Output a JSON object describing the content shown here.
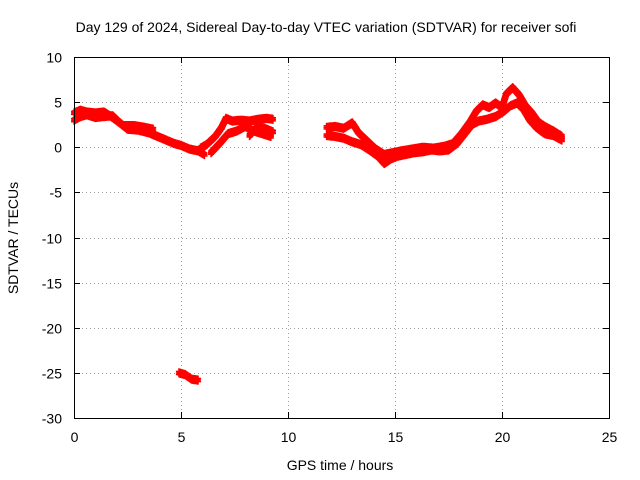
{
  "chart_data": {
    "type": "scatter",
    "title": "Day 129 of 2024, Sidereal Day-to-day VTEC variation (SDTVAR) for receiver sofi",
    "xlabel": "GPS time / hours",
    "ylabel": "SDTVAR / TECUs",
    "xlim": [
      0,
      25
    ],
    "ylim": [
      -30,
      10
    ],
    "x_ticks": [
      0,
      5,
      10,
      15,
      20,
      25
    ],
    "y_ticks": [
      10,
      5,
      0,
      -5,
      -10,
      -15,
      -20,
      -25,
      -30
    ],
    "grid": true,
    "marker_color": "#ff0000",
    "series": [
      {
        "name": "SDTVAR",
        "segments": [
          [
            [
              0.0,
              3.0
            ],
            [
              0.3,
              3.4
            ],
            [
              0.6,
              3.6
            ],
            [
              1.0,
              3.3
            ],
            [
              1.4,
              3.4
            ],
            [
              1.8,
              3.5
            ],
            [
              2.1,
              2.8
            ],
            [
              2.5,
              2.0
            ],
            [
              3.0,
              1.9
            ],
            [
              3.5,
              1.6
            ],
            [
              3.9,
              1.2
            ],
            [
              4.3,
              0.8
            ],
            [
              4.7,
              0.4
            ],
            [
              5.0,
              0.2
            ],
            [
              5.4,
              -0.2
            ],
            [
              5.8,
              -0.4
            ],
            [
              6.1,
              -0.8
            ]
          ],
          [
            [
              0.0,
              3.8
            ],
            [
              0.3,
              4.1
            ],
            [
              0.6,
              3.9
            ],
            [
              1.0,
              3.8
            ],
            [
              1.4,
              3.9
            ],
            [
              1.8,
              3.3
            ],
            [
              2.3,
              2.4
            ],
            [
              2.8,
              2.4
            ],
            [
              3.3,
              2.2
            ],
            [
              3.7,
              2.0
            ]
          ],
          [
            [
              5.9,
              -0.1
            ],
            [
              6.2,
              0.3
            ],
            [
              6.6,
              1.2
            ],
            [
              6.9,
              2.2
            ],
            [
              7.1,
              3.2
            ],
            [
              7.4,
              2.9
            ],
            [
              7.8,
              3.0
            ],
            [
              8.2,
              2.9
            ],
            [
              8.6,
              3.1
            ],
            [
              9.0,
              3.2
            ],
            [
              9.3,
              3.1
            ]
          ],
          [
            [
              6.4,
              -0.6
            ],
            [
              6.8,
              0.4
            ],
            [
              7.2,
              1.5
            ],
            [
              7.6,
              1.8
            ],
            [
              8.0,
              2.3
            ],
            [
              8.4,
              1.8
            ],
            [
              8.8,
              1.5
            ],
            [
              9.2,
              1.2
            ]
          ],
          [
            [
              8.2,
              1.3
            ],
            [
              8.6,
              2.4
            ],
            [
              9.0,
              2.0
            ],
            [
              9.3,
              1.7
            ]
          ],
          [
            [
              11.8,
              2.2
            ],
            [
              12.2,
              2.3
            ],
            [
              12.6,
              2.1
            ],
            [
              13.0,
              2.7
            ],
            [
              13.3,
              1.6
            ],
            [
              13.7,
              0.7
            ],
            [
              14.1,
              -0.2
            ],
            [
              14.5,
              -0.8
            ],
            [
              14.9,
              -0.6
            ],
            [
              15.3,
              -0.4
            ],
            [
              15.8,
              -0.2
            ],
            [
              16.3,
              0.0
            ],
            [
              16.8,
              -0.1
            ],
            [
              17.3,
              0.1
            ],
            [
              17.7,
              0.4
            ],
            [
              18.1,
              1.5
            ],
            [
              18.5,
              2.8
            ],
            [
              18.8,
              4.0
            ],
            [
              19.1,
              4.7
            ],
            [
              19.4,
              4.4
            ],
            [
              19.7,
              4.9
            ],
            [
              20.0,
              4.4
            ],
            [
              20.2,
              5.9
            ],
            [
              20.5,
              6.6
            ],
            [
              20.8,
              5.8
            ],
            [
              21.1,
              4.6
            ],
            [
              21.4,
              3.8
            ],
            [
              21.7,
              2.8
            ],
            [
              22.0,
              2.3
            ],
            [
              22.4,
              1.8
            ],
            [
              22.8,
              1.2
            ]
          ],
          [
            [
              11.8,
              1.3
            ],
            [
              12.2,
              1.2
            ],
            [
              12.6,
              1.0
            ],
            [
              13.0,
              0.6
            ],
            [
              13.4,
              0.3
            ],
            [
              13.8,
              -0.3
            ],
            [
              14.2,
              -1.0
            ],
            [
              14.5,
              -1.8
            ],
            [
              14.8,
              -1.3
            ],
            [
              15.1,
              -1.0
            ],
            [
              15.5,
              -0.8
            ],
            [
              15.9,
              -0.6
            ],
            [
              16.3,
              -0.5
            ],
            [
              16.7,
              -0.3
            ],
            [
              17.1,
              -0.4
            ],
            [
              17.5,
              -0.3
            ],
            [
              17.9,
              0.4
            ],
            [
              18.3,
              1.6
            ],
            [
              18.6,
              2.5
            ],
            [
              18.9,
              2.9
            ],
            [
              19.3,
              3.1
            ],
            [
              19.7,
              3.4
            ],
            [
              20.1,
              4.0
            ],
            [
              20.4,
              4.6
            ],
            [
              20.7,
              4.9
            ],
            [
              21.0,
              4.2
            ],
            [
              21.3,
              3.0
            ],
            [
              21.6,
              2.2
            ],
            [
              22.0,
              1.5
            ],
            [
              22.4,
              1.3
            ],
            [
              22.8,
              0.8
            ]
          ],
          [
            [
              4.9,
              -25.0
            ],
            [
              5.2,
              -25.2
            ],
            [
              5.5,
              -25.7
            ],
            [
              5.8,
              -25.8
            ]
          ]
        ]
      }
    ]
  }
}
